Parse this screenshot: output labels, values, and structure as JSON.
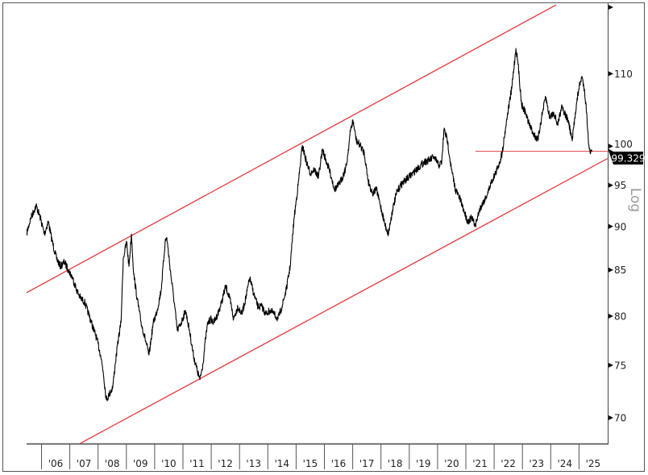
{
  "chart_data": {
    "type": "line",
    "title": "",
    "xlabel": "",
    "ylabel": "",
    "scale_label": "Log",
    "y_scale": "log",
    "ylim": [
      67.7,
      120.1
    ],
    "xlim": [
      2005.47,
      2026.1
    ],
    "grid": false,
    "legend": "none",
    "y_ticks": [
      70,
      75,
      80,
      85,
      90,
      95,
      100,
      110
    ],
    "x_tick_labels": [
      "'06",
      "'07",
      "'08",
      "'09",
      "'10",
      "'11",
      "'12",
      "'13",
      "'14",
      "'15",
      "'16",
      "'17",
      "'18",
      "'19",
      "'20",
      "'21",
      "'22",
      "'23",
      "'24",
      "'25"
    ],
    "x_tick_years": [
      2006,
      2007,
      2008,
      2009,
      2010,
      2011,
      2012,
      2013,
      2014,
      2015,
      2016,
      2017,
      2018,
      2019,
      2020,
      2021,
      2022,
      2023,
      2024,
      2025
    ],
    "last_value_label": "99.329",
    "colors": {
      "series": "#000000",
      "channel": "#e8373b",
      "level": "#e0404a",
      "label_bg": "#000000",
      "label_text": "#ffffff",
      "scale_label": "#9a9a9a"
    },
    "series": [
      {
        "x": [
          2005.47,
          2005.62,
          2005.81,
          2005.96,
          2006.1,
          2006.24,
          2006.38,
          2006.53,
          2006.67,
          2006.81,
          2006.95,
          2007.1,
          2007.24,
          2007.38,
          2007.52,
          2007.67,
          2007.81,
          2007.95,
          2008.09,
          2008.18,
          2008.29,
          2008.38,
          2008.52,
          2008.61,
          2008.72,
          2008.81,
          2008.89,
          2009.01,
          2009.09,
          2009.18,
          2009.26,
          2009.38,
          2009.52,
          2009.66,
          2009.8,
          2009.95,
          2010.09,
          2010.23,
          2010.37,
          2010.43,
          2010.57,
          2010.66,
          2010.8,
          2010.94,
          2011.09,
          2011.23,
          2011.37,
          2011.51,
          2011.6,
          2011.71,
          2011.8,
          2011.88,
          2012.0,
          2012.08,
          2012.23,
          2012.37,
          2012.51,
          2012.65,
          2012.79,
          2012.94,
          2013.08,
          2013.22,
          2013.36,
          2013.51,
          2013.65,
          2013.79,
          2013.93,
          2014.08,
          2014.22,
          2014.36,
          2014.5,
          2014.65,
          2014.79,
          2014.93,
          2015.07,
          2015.22,
          2015.36,
          2015.5,
          2015.64,
          2015.79,
          2015.93,
          2016.07,
          2016.21,
          2016.36,
          2016.5,
          2016.64,
          2016.78,
          2016.93,
          2017.01,
          2017.13,
          2017.27,
          2017.41,
          2017.55,
          2017.7,
          2017.84,
          2017.98,
          2018.15,
          2018.26,
          2018.41,
          2018.55,
          2018.69,
          2018.83,
          2018.98,
          2019.12,
          2019.26,
          2019.4,
          2019.55,
          2019.72,
          2019.86,
          2020.06,
          2020.15,
          2020.23,
          2020.35,
          2020.49,
          2020.63,
          2020.77,
          2020.92,
          2021.06,
          2021.2,
          2021.34,
          2021.48,
          2021.63,
          2021.77,
          2021.91,
          2022.05,
          2022.2,
          2022.28,
          2022.4,
          2022.48,
          2022.62,
          2022.77,
          2022.85,
          2022.97,
          2023.11,
          2023.25,
          2023.39,
          2023.54,
          2023.68,
          2023.82,
          2023.96,
          2024.11,
          2024.25,
          2024.39,
          2024.48,
          2024.62,
          2024.76,
          2024.87,
          2024.99,
          2025.1,
          2025.19,
          2025.27,
          2025.33,
          2025.41,
          2025.47
        ],
        "y": [
          89.1,
          91.0,
          92.5,
          91.0,
          89.1,
          90.6,
          88.2,
          86.3,
          85.4,
          85.9,
          85.0,
          84.1,
          82.8,
          81.9,
          81.5,
          80.2,
          78.9,
          77.7,
          76.0,
          74.4,
          71.7,
          72.1,
          72.9,
          75.2,
          77.7,
          79.3,
          86.3,
          88.2,
          85.4,
          89.1,
          84.5,
          81.9,
          79.3,
          77.7,
          76.0,
          79.3,
          80.6,
          82.8,
          88.2,
          88.7,
          84.5,
          82.3,
          78.5,
          79.3,
          80.6,
          78.5,
          76.0,
          74.4,
          73.6,
          75.2,
          77.7,
          79.3,
          79.7,
          79.3,
          80.2,
          81.5,
          83.2,
          81.9,
          79.7,
          81.0,
          80.2,
          81.9,
          84.1,
          82.3,
          81.0,
          81.0,
          80.2,
          80.6,
          80.2,
          79.7,
          81.0,
          82.8,
          85.4,
          91.0,
          95.0,
          100.1,
          98.0,
          96.5,
          97.0,
          96.0,
          99.6,
          98.0,
          96.5,
          94.5,
          95.0,
          96.0,
          97.5,
          102.3,
          103.4,
          100.7,
          100.1,
          99.1,
          95.5,
          94.0,
          94.5,
          92.5,
          90.1,
          89.1,
          92.0,
          94.0,
          95.0,
          95.5,
          96.0,
          96.5,
          97.0,
          97.5,
          98.0,
          98.2,
          98.6,
          97.5,
          98.0,
          102.3,
          100.7,
          97.0,
          94.5,
          93.5,
          92.0,
          90.6,
          91.0,
          90.1,
          92.0,
          93.0,
          94.0,
          95.5,
          96.5,
          98.0,
          99.1,
          102.3,
          104.5,
          107.8,
          113.7,
          111.3,
          105.6,
          104.5,
          102.8,
          101.7,
          100.7,
          103.9,
          106.7,
          103.9,
          104.5,
          102.8,
          105.6,
          104.5,
          103.4,
          100.7,
          104.5,
          107.8,
          109.6,
          107.8,
          104.5,
          100.7,
          99.1,
          99.329
        ]
      }
    ],
    "trend_lines": [
      {
        "role": "upper-channel",
        "x": [
          2005.47,
          2024.19
        ],
        "y": [
          82.5,
          120.4
        ]
      },
      {
        "role": "lower-channel",
        "x": [
          2007.38,
          2026.01
        ],
        "y": [
          67.7,
          98.4
        ]
      },
      {
        "role": "level",
        "x": [
          2021.34,
          2026.01
        ],
        "y": [
          99.329,
          99.329
        ]
      }
    ]
  }
}
